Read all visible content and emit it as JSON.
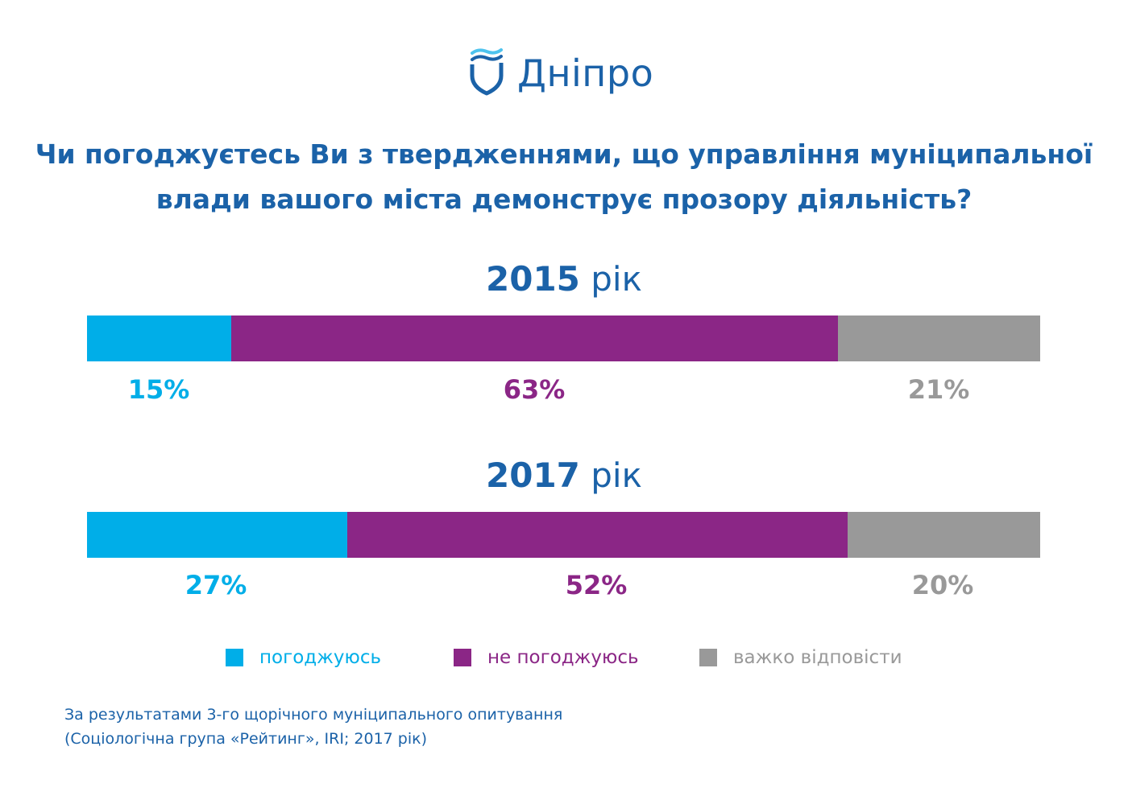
{
  "colors": {
    "brand": "#1b62a8",
    "agree": "#00aee8",
    "disagree": "#8b2686",
    "hard": "#999999"
  },
  "logo": {
    "text": "Дніпро",
    "icon": "shield-wave-icon"
  },
  "question": {
    "line1": "Чи погоджуєтесь Ви з твердженнями, що управління муніципальної",
    "line2": "влади вашого міста демонструє прозору діяльність?"
  },
  "legend": {
    "agree": "погоджуюсь",
    "disagree": "не погоджуюсь",
    "hard": "важко відповісти"
  },
  "footnote": {
    "line1": "За результатами 3-го щорічного муніципального опитування",
    "line2": "(Соціологічна група «Рейтинг», IRI; 2017 рік)"
  },
  "chart_data": {
    "type": "bar",
    "stacked": true,
    "orientation": "horizontal",
    "categories": [
      "2015",
      "2017"
    ],
    "category_labels": [
      {
        "year": "2015",
        "suffix": " рік"
      },
      {
        "year": "2017",
        "suffix": " рік"
      }
    ],
    "series": [
      {
        "name": "погоджуюсь",
        "values": [
          15,
          27
        ],
        "labels": [
          "15%",
          "27%"
        ]
      },
      {
        "name": "не погоджуюсь",
        "values": [
          63,
          52
        ],
        "labels": [
          "63%",
          "52%"
        ]
      },
      {
        "name": "важко відповісти",
        "values": [
          21,
          20
        ],
        "labels": [
          "21%",
          "20%"
        ]
      }
    ],
    "legend_position": "bottom"
  }
}
